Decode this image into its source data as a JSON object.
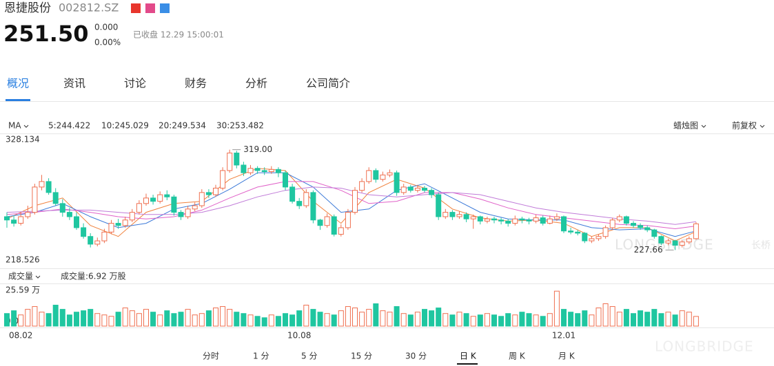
{
  "header": {
    "name": "恩捷股份",
    "code": "002812.SZ",
    "price": "251.50",
    "change": "0.000",
    "change_pct": "0.00%",
    "status": "已收盘 12.29 15:00:01"
  },
  "tabs": [
    "概况",
    "资讯",
    "讨论",
    "财务",
    "分析",
    "公司简介"
  ],
  "toolbar": {
    "indicator": "MA",
    "chart_type": "蜡烛图",
    "adjust": "前复权",
    "volume_indicator": "成交量",
    "volume_text": "成交量:6.92 万股"
  },
  "periods": [
    "分时",
    "1 分",
    "5 分",
    "15 分",
    "30 分",
    "日 K",
    "周 K",
    "月 K"
  ],
  "watermark": [
    "LONGBRIDGE",
    "长桥"
  ],
  "chart_data": {
    "type": "candlestick",
    "up_color": "#ef6f4f",
    "down_color": "#1fc6a0",
    "ylim": [
      218.526,
      328.134
    ],
    "yticks": [
      218.526,
      328.134
    ],
    "vlim": [
      0,
      25.59
    ],
    "vticks": [
      {
        "value": 25.59,
        "label": "25.59 万"
      },
      {
        "value": 0,
        "label": "0.00"
      }
    ],
    "max_label": "319.00",
    "min_label": "227.66",
    "categories": [
      null,
      null,
      "08.02",
      null,
      null,
      null,
      null,
      null,
      null,
      null,
      null,
      null,
      null,
      null,
      null,
      null,
      null,
      null,
      null,
      null,
      null,
      null,
      null,
      null,
      null,
      null,
      null,
      null,
      null,
      null,
      null,
      null,
      null,
      null,
      null,
      null,
      null,
      null,
      null,
      null,
      null,
      null,
      "10.08",
      null,
      null,
      null,
      null,
      null,
      null,
      null,
      null,
      null,
      null,
      null,
      null,
      null,
      null,
      null,
      null,
      null,
      null,
      null,
      null,
      null,
      null,
      null,
      null,
      null,
      null,
      null,
      null,
      null,
      null,
      null,
      null,
      null,
      null,
      null,
      null,
      null,
      "12.01",
      null,
      null,
      null,
      null,
      null,
      null,
      null,
      null,
      null,
      null,
      null,
      null,
      null,
      null,
      null,
      null,
      null,
      null,
      null
    ],
    "ohlc": [
      [
        258,
        262,
        248,
        255
      ],
      [
        255,
        259,
        249,
        252
      ],
      [
        252,
        262,
        250,
        258
      ],
      [
        258,
        268,
        256,
        262
      ],
      [
        262,
        288,
        260,
        285
      ],
      [
        285,
        296,
        282,
        290
      ],
      [
        290,
        293,
        278,
        280
      ],
      [
        280,
        284,
        268,
        270
      ],
      [
        270,
        274,
        258,
        262
      ],
      [
        262,
        266,
        255,
        258
      ],
      [
        258,
        262,
        246,
        248
      ],
      [
        248,
        252,
        238,
        240
      ],
      [
        240,
        243,
        230,
        233
      ],
      [
        233,
        239,
        231,
        236
      ],
      [
        236,
        247,
        234,
        244
      ],
      [
        244,
        255,
        242,
        252
      ],
      [
        252,
        256,
        247,
        250
      ],
      [
        250,
        258,
        248,
        255
      ],
      [
        255,
        265,
        253,
        262
      ],
      [
        262,
        273,
        260,
        270
      ],
      [
        270,
        279,
        268,
        275
      ],
      [
        275,
        278,
        269,
        272
      ],
      [
        272,
        281,
        270,
        278
      ],
      [
        278,
        282,
        273,
        276
      ],
      [
        276,
        278,
        259,
        262
      ],
      [
        262,
        264,
        255,
        258
      ],
      [
        258,
        268,
        256,
        265
      ],
      [
        265,
        271,
        263,
        268
      ],
      [
        268,
        283,
        266,
        280
      ],
      [
        280,
        283,
        275,
        278
      ],
      [
        278,
        287,
        276,
        284
      ],
      [
        284,
        303,
        282,
        300
      ],
      [
        300,
        319,
        298,
        316
      ],
      [
        316,
        318,
        302,
        305
      ],
      [
        305,
        308,
        295,
        298
      ],
      [
        298,
        305,
        296,
        302
      ],
      [
        302,
        304,
        297,
        300
      ],
      [
        300,
        303,
        296,
        299
      ],
      [
        299,
        304,
        297,
        301
      ],
      [
        301,
        303,
        294,
        298
      ],
      [
        298,
        300,
        282,
        285
      ],
      [
        285,
        288,
        270,
        272
      ],
      [
        272,
        275,
        265,
        268
      ],
      [
        268,
        283,
        266,
        280
      ],
      [
        280,
        282,
        252,
        255
      ],
      [
        255,
        256,
        246,
        250
      ],
      [
        250,
        261,
        248,
        258
      ],
      [
        258,
        260,
        240,
        242
      ],
      [
        242,
        251,
        240,
        248
      ],
      [
        248,
        265,
        246,
        262
      ],
      [
        262,
        285,
        260,
        282
      ],
      [
        282,
        293,
        280,
        290
      ],
      [
        290,
        303,
        288,
        300
      ],
      [
        300,
        302,
        289,
        292
      ],
      [
        292,
        299,
        290,
        296
      ],
      [
        296,
        301,
        294,
        298
      ],
      [
        298,
        300,
        277,
        280
      ],
      [
        280,
        288,
        278,
        285
      ],
      [
        285,
        287,
        280,
        282
      ],
      [
        282,
        287,
        280,
        284
      ],
      [
        284,
        286,
        280,
        282
      ],
      [
        282,
        284,
        275,
        278
      ],
      [
        278,
        280,
        255,
        258
      ],
      [
        258,
        265,
        256,
        262
      ],
      [
        262,
        264,
        255,
        258
      ],
      [
        258,
        263,
        256,
        260
      ],
      [
        260,
        262,
        253,
        256
      ],
      [
        256,
        260,
        247,
        258
      ],
      [
        258,
        259,
        251,
        254
      ],
      [
        254,
        258,
        252,
        256
      ],
      [
        256,
        258,
        252,
        255
      ],
      [
        255,
        257,
        251,
        254
      ],
      [
        254,
        256,
        249,
        252
      ],
      [
        252,
        259,
        250,
        256
      ],
      [
        256,
        258,
        252,
        255
      ],
      [
        255,
        257,
        251,
        254
      ],
      [
        254,
        260,
        252,
        257
      ],
      [
        257,
        259,
        250,
        252
      ],
      [
        252,
        259,
        251,
        256
      ],
      [
        256,
        261,
        254,
        258
      ],
      [
        258,
        259,
        243,
        245
      ],
      [
        245,
        248,
        242,
        244
      ],
      [
        244,
        246,
        241,
        243
      ],
      [
        243,
        244,
        234,
        236
      ],
      [
        236,
        240,
        234,
        238
      ],
      [
        238,
        242,
        236,
        240
      ],
      [
        240,
        250,
        238,
        248
      ],
      [
        248,
        257,
        246,
        255
      ],
      [
        255,
        260,
        253,
        258
      ],
      [
        258,
        259,
        250,
        252
      ],
      [
        252,
        254,
        248,
        250
      ],
      [
        250,
        252,
        246,
        248
      ],
      [
        248,
        250,
        244,
        246
      ],
      [
        246,
        247,
        238,
        240
      ],
      [
        240,
        241,
        232,
        234
      ],
      [
        234,
        238,
        232,
        236
      ],
      [
        236,
        237,
        227.66,
        232
      ],
      [
        232,
        237,
        230,
        235
      ],
      [
        235,
        240,
        233,
        238
      ],
      [
        238,
        253,
        237,
        251.5
      ]
    ],
    "volume": [
      9,
      11,
      8,
      12,
      14,
      10,
      9,
      15,
      12,
      8,
      10,
      11,
      12,
      9,
      8,
      7,
      10,
      13,
      11,
      9,
      12,
      10,
      8,
      11,
      9,
      10,
      12,
      8,
      9,
      11,
      13,
      14,
      12,
      10,
      9,
      8,
      7,
      6,
      8,
      7,
      9,
      8,
      11,
      15,
      12,
      10,
      9,
      8,
      11,
      14,
      13,
      10,
      12,
      16,
      11,
      10,
      14,
      9,
      8,
      10,
      12,
      11,
      13,
      9,
      8,
      10,
      9,
      7,
      8,
      9,
      8,
      7,
      9,
      8,
      10,
      9,
      8,
      7,
      9,
      25,
      12,
      10,
      9,
      11,
      8,
      13,
      16,
      14,
      10,
      12,
      9,
      11,
      10,
      12,
      9,
      10,
      8,
      11,
      10,
      6.92
    ],
    "ma_x": [
      0,
      4,
      8,
      12,
      16,
      20,
      24,
      28,
      32,
      36,
      40,
      44,
      48,
      52,
      56,
      60,
      64,
      68,
      72,
      76,
      80,
      84,
      88,
      92,
      96,
      99
    ],
    "ma": [
      {
        "label": "5:244.422",
        "color": "#f0803c",
        "values": [
          256,
          268,
          275,
          250,
          240,
          262,
          270,
          272,
          292,
          302,
          300,
          272,
          252,
          280,
          292,
          284,
          265,
          257,
          254,
          255,
          252,
          240,
          248,
          248,
          236,
          244.422
        ]
      },
      {
        "label": "10:245.029",
        "color": "#3b79d8",
        "values": [
          258,
          262,
          270,
          258,
          248,
          252,
          265,
          270,
          283,
          298,
          298,
          285,
          262,
          265,
          282,
          288,
          275,
          262,
          256,
          255,
          255,
          248,
          246,
          247,
          240,
          245.029
        ]
      },
      {
        "label": "20:249.534",
        "color": "#e060c8",
        "values": [
          260,
          262,
          265,
          262,
          258,
          256,
          258,
          264,
          275,
          285,
          290,
          290,
          282,
          270,
          272,
          280,
          280,
          274,
          266,
          260,
          257,
          254,
          251,
          250,
          247,
          249.534
        ]
      },
      {
        "label": "30:253.482",
        "color": "#c07ad8",
        "values": [
          262,
          263,
          264,
          264,
          262,
          260,
          260,
          262,
          268,
          276,
          282,
          285,
          284,
          278,
          276,
          278,
          280,
          278,
          272,
          266,
          262,
          259,
          256,
          254,
          251,
          253.482
        ]
      }
    ]
  }
}
